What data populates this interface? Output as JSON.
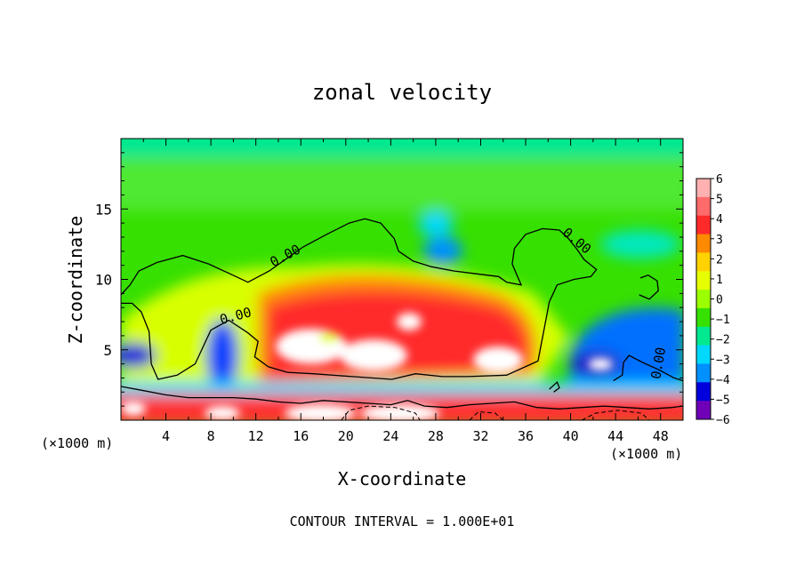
{
  "chart_data": {
    "type": "heatmap",
    "title": "zonal velocity",
    "xlabel": "X-coordinate",
    "ylabel": "Z-coordinate",
    "x_unit_left": "(×1000 m)",
    "x_unit_right": "(×1000 m)",
    "xlim": [
      0,
      50
    ],
    "ylim": [
      0,
      20
    ],
    "x_ticks": [
      4,
      8,
      12,
      16,
      20,
      24,
      28,
      32,
      36,
      40,
      44,
      48
    ],
    "y_ticks": [
      5,
      10,
      15
    ],
    "colorbar": {
      "min": -6,
      "max": 6,
      "labels": [
        "6",
        "5",
        "4",
        "3",
        "2",
        "1",
        "0",
        "−1",
        "−2",
        "−3",
        "−4",
        "−5",
        "−6"
      ],
      "colors": [
        "#ffb0b0",
        "#ff6a6a",
        "#ff2a2a",
        "#ff8a00",
        "#ffd200",
        "#e6ff00",
        "#9cff00",
        "#36e000",
        "#00e890",
        "#00d8ff",
        "#0090ff",
        "#0000dd",
        "#7000b8"
      ]
    },
    "contour_labels": [
      {
        "text": "0.00",
        "x": 10.3,
        "z": 7.1
      },
      {
        "text": "0.00",
        "x": 14.8,
        "z": 11.4
      },
      {
        "text": "0.00",
        "x": 40.3,
        "z": 12.5
      },
      {
        "text": "0.00",
        "x": 48.2,
        "z": 4.0
      }
    ],
    "contour_zero": [
      [
        [
          0,
          8.9
        ],
        [
          0.8,
          9.6
        ],
        [
          1.6,
          10.6
        ],
        [
          3.2,
          11.2
        ],
        [
          5.5,
          11.7
        ],
        [
          7.8,
          11.1
        ],
        [
          9.7,
          10.4
        ],
        [
          11.3,
          9.8
        ],
        [
          13.2,
          10.6
        ],
        [
          14.6,
          11.4
        ],
        [
          16.2,
          12.3
        ],
        [
          18.3,
          13.2
        ],
        [
          20.3,
          14.0
        ],
        [
          21.7,
          14.3
        ],
        [
          23.1,
          14.0
        ],
        [
          24.3,
          12.9
        ],
        [
          24.7,
          12.0
        ],
        [
          26.0,
          11.3
        ],
        [
          27.6,
          10.9
        ],
        [
          29.6,
          10.6
        ],
        [
          31.6,
          10.4
        ],
        [
          33.6,
          10.2
        ],
        [
          34.3,
          9.8
        ],
        [
          35.6,
          9.6
        ],
        [
          34.8,
          11.1
        ],
        [
          35.0,
          12.2
        ],
        [
          36.0,
          13.2
        ],
        [
          37.5,
          13.6
        ],
        [
          39.0,
          13.5
        ],
        [
          39.8,
          12.9
        ],
        [
          40.6,
          12.1
        ],
        [
          41.2,
          11.4
        ],
        [
          42.3,
          10.7
        ],
        [
          41.8,
          10.2
        ],
        [
          40.3,
          10.0
        ],
        [
          38.8,
          9.6
        ],
        [
          38.1,
          8.4
        ],
        [
          37.6,
          6.3
        ],
        [
          37.1,
          4.2
        ],
        [
          34.3,
          3.2
        ],
        [
          30.8,
          3.1
        ],
        [
          28.6,
          3.1
        ],
        [
          26.2,
          3.3
        ],
        [
          24.1,
          2.9
        ],
        [
          20.6,
          3.1
        ],
        [
          17.1,
          3.3
        ],
        [
          14.8,
          3.4
        ],
        [
          13.1,
          3.8
        ],
        [
          11.9,
          4.5
        ],
        [
          12.2,
          5.6
        ],
        [
          11.3,
          6.2
        ],
        [
          9.6,
          7.1
        ],
        [
          8.0,
          6.4
        ],
        [
          6.6,
          4.0
        ],
        [
          5.0,
          3.2
        ],
        [
          3.3,
          2.9
        ],
        [
          2.7,
          4.0
        ],
        [
          2.5,
          6.3
        ],
        [
          1.8,
          7.7
        ],
        [
          1.0,
          8.3
        ],
        [
          0,
          8.3
        ]
      ],
      [
        [
          46.2,
          10.1
        ],
        [
          46.9,
          10.3
        ],
        [
          47.7,
          9.9
        ],
        [
          47.8,
          9.2
        ],
        [
          47.0,
          8.6
        ],
        [
          46.1,
          8.9
        ]
      ],
      [
        [
          43.8,
          2.8
        ],
        [
          44.6,
          3.2
        ],
        [
          44.7,
          4.1
        ],
        [
          45.2,
          4.6
        ],
        [
          46.4,
          4.1
        ],
        [
          47.8,
          3.6
        ],
        [
          49.2,
          3.0
        ],
        [
          50,
          2.8
        ]
      ],
      [
        [
          38.1,
          2.2
        ],
        [
          38.8,
          2.7
        ],
        [
          39.0,
          2.3
        ],
        [
          38.5,
          2.0
        ]
      ],
      [
        [
          0,
          2.4
        ],
        [
          2.0,
          2.1
        ],
        [
          4.0,
          1.8
        ],
        [
          6.0,
          1.6
        ],
        [
          8.0,
          1.6
        ],
        [
          10.0,
          1.6
        ],
        [
          12.0,
          1.5
        ],
        [
          14.0,
          1.3
        ],
        [
          16.0,
          1.2
        ],
        [
          18.0,
          1.4
        ],
        [
          20.0,
          1.3
        ],
        [
          22.0,
          1.2
        ],
        [
          24.0,
          1.1
        ],
        [
          25.5,
          1.4
        ],
        [
          27.0,
          1.0
        ],
        [
          29.0,
          0.9
        ],
        [
          31.0,
          1.1
        ],
        [
          33.0,
          1.2
        ],
        [
          35.0,
          1.3
        ],
        [
          37.0,
          0.9
        ],
        [
          39.0,
          0.8
        ],
        [
          41.0,
          0.9
        ],
        [
          43.0,
          1.0
        ],
        [
          45.0,
          0.9
        ],
        [
          47.0,
          0.8
        ],
        [
          49.0,
          0.9
        ],
        [
          50,
          1.0
        ]
      ]
    ],
    "contour_negative": [
      [
        [
          19.6,
          0
        ],
        [
          20.3,
          0.7
        ],
        [
          22.0,
          1.0
        ],
        [
          24.4,
          0.9
        ],
        [
          26.2,
          0.5
        ],
        [
          26.6,
          0
        ]
      ],
      [
        [
          31.0,
          0
        ],
        [
          31.8,
          0.6
        ],
        [
          33.3,
          0.5
        ],
        [
          34.0,
          0
        ]
      ],
      [
        [
          41.0,
          0
        ],
        [
          42.2,
          0.5
        ],
        [
          44.2,
          0.7
        ],
        [
          46.3,
          0.5
        ],
        [
          47.0,
          0
        ]
      ]
    ],
    "footer": "CONTOUR INTERVAL = 1.000E+01"
  }
}
